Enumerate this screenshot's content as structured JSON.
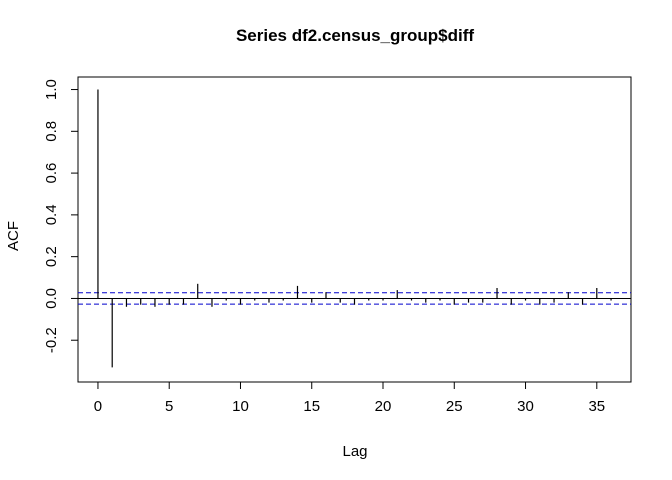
{
  "chart_data": {
    "type": "bar",
    "title": "Series  df2.census_group$diff",
    "xlabel": "Lag",
    "ylabel": "ACF",
    "xlim": [
      -1.4,
      37.4
    ],
    "ylim": [
      -0.4,
      1.06
    ],
    "x_ticks": [
      0,
      5,
      10,
      15,
      20,
      25,
      30,
      35
    ],
    "y_ticks": [
      -0.2,
      0.0,
      0.2,
      0.4,
      0.6,
      0.8,
      1.0
    ],
    "y_tick_labels": [
      "-0.2",
      "0.0",
      "0.2",
      "0.4",
      "0.6",
      "0.8",
      "1.0"
    ],
    "confidence_bound": 0.027,
    "lags": [
      0,
      1,
      2,
      3,
      4,
      5,
      6,
      7,
      8,
      9,
      10,
      11,
      12,
      13,
      14,
      15,
      16,
      17,
      18,
      19,
      20,
      21,
      22,
      23,
      24,
      25,
      26,
      27,
      28,
      29,
      30,
      31,
      32,
      33,
      34,
      35,
      36
    ],
    "acf": [
      1.0,
      -0.33,
      -0.04,
      -0.03,
      -0.04,
      -0.03,
      -0.03,
      0.07,
      -0.04,
      -0.01,
      -0.03,
      -0.01,
      -0.02,
      -0.01,
      0.06,
      -0.02,
      0.03,
      -0.02,
      -0.03,
      -0.01,
      -0.01,
      0.04,
      -0.01,
      -0.02,
      -0.01,
      -0.03,
      -0.02,
      -0.02,
      0.05,
      -0.03,
      -0.01,
      -0.03,
      -0.02,
      0.03,
      -0.03,
      0.05,
      -0.01
    ],
    "grid": false,
    "legend": "none",
    "colors": {
      "bars": "#000000",
      "zero_line": "#000000",
      "confidence_lines": "#0000cc",
      "frame": "#000000"
    }
  }
}
